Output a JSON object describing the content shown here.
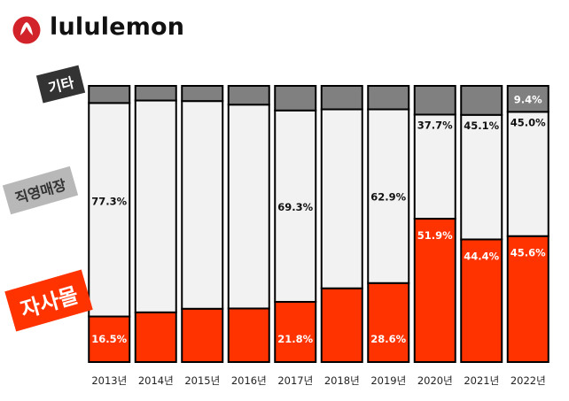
{
  "brand": {
    "name": "lululemon"
  },
  "tags": {
    "other": "기타",
    "direct": "직영매장",
    "own": "자사몰"
  },
  "colors": {
    "own": "#ff3300",
    "direct": "#f2f2f2",
    "other": "#808080",
    "outline": "#000000",
    "brand": "#d2232a"
  },
  "chart_data": {
    "type": "bar",
    "stacked": true,
    "normalized": true,
    "categories": [
      "2013년",
      "2014년",
      "2015년",
      "2016년",
      "2017년",
      "2018년",
      "2019년",
      "2020년",
      "2021년",
      "2022년"
    ],
    "ylim": [
      0,
      100
    ],
    "series": [
      {
        "name": "자사몰",
        "color": "#ff3300",
        "values": [
          16.5,
          18.0,
          19.3,
          19.4,
          21.8,
          26.7,
          28.6,
          51.9,
          44.4,
          45.6
        ],
        "labels": [
          "16.5%",
          "",
          "",
          "",
          "21.8%",
          "",
          "28.6%",
          "51.9%",
          "44.4%",
          "45.6%"
        ]
      },
      {
        "name": "직영매장",
        "color": "#f2f2f2",
        "values": [
          77.3,
          76.7,
          75.2,
          73.8,
          69.3,
          64.8,
          62.9,
          37.7,
          45.1,
          45.0
        ],
        "labels": [
          "77.3%",
          "",
          "",
          "",
          "69.3%",
          "",
          "62.9%",
          "37.7%",
          "45.1%",
          "45.0%"
        ]
      },
      {
        "name": "기타",
        "color": "#808080",
        "values": [
          6.2,
          5.3,
          5.5,
          6.8,
          8.9,
          8.5,
          8.5,
          10.4,
          10.5,
          9.4
        ],
        "labels": [
          "",
          "",
          "",
          "",
          "",
          "",
          "",
          "",
          "",
          "9.4%"
        ]
      }
    ]
  }
}
